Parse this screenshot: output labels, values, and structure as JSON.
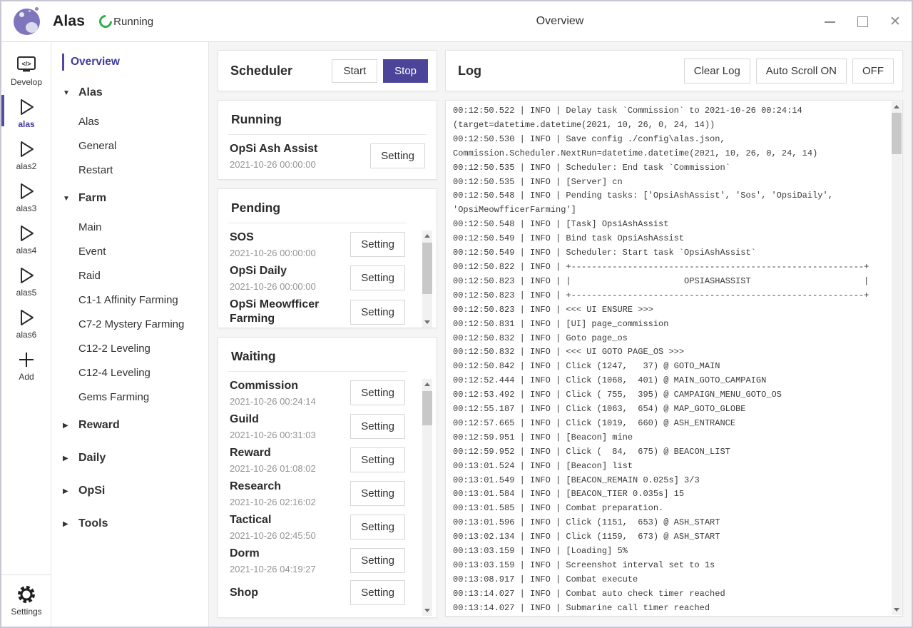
{
  "colors": {
    "accent": "#4b4499",
    "active_purple": "#3f3a9e",
    "green": "#2fae4d"
  },
  "window": {
    "app_title": "Alas",
    "status": "Running",
    "page_title": "Overview"
  },
  "sidebar": {
    "items": [
      {
        "label": "Develop",
        "icon": "code-monitor-icon",
        "active": false
      },
      {
        "label": "alas",
        "icon": "play-icon",
        "active": true
      },
      {
        "label": "alas2",
        "icon": "play-icon",
        "active": false
      },
      {
        "label": "alas3",
        "icon": "play-icon",
        "active": false
      },
      {
        "label": "alas4",
        "icon": "play-icon",
        "active": false
      },
      {
        "label": "alas5",
        "icon": "play-icon",
        "active": false
      },
      {
        "label": "alas6",
        "icon": "play-icon",
        "active": false
      },
      {
        "label": "Add",
        "icon": "plus-icon",
        "active": false
      }
    ],
    "settings": {
      "label": "Settings",
      "icon": "gear-icon"
    }
  },
  "nav": {
    "items": [
      {
        "type": "link",
        "label": "Overview",
        "active": true
      },
      {
        "type": "group",
        "label": "Alas",
        "arrow": "down"
      },
      {
        "type": "child",
        "label": "Alas"
      },
      {
        "type": "child",
        "label": "General"
      },
      {
        "type": "child",
        "label": "Restart"
      },
      {
        "type": "group",
        "label": "Farm",
        "arrow": "down"
      },
      {
        "type": "child",
        "label": "Main"
      },
      {
        "type": "child",
        "label": "Event"
      },
      {
        "type": "child",
        "label": "Raid"
      },
      {
        "type": "child",
        "label": "C1-1 Affinity Farming"
      },
      {
        "type": "child",
        "label": "C7-2 Mystery Farming"
      },
      {
        "type": "child",
        "label": "C12-2 Leveling"
      },
      {
        "type": "child",
        "label": "C12-4 Leveling"
      },
      {
        "type": "child",
        "label": "Gems Farming"
      },
      {
        "type": "group",
        "label": "Reward",
        "arrow": "right"
      },
      {
        "type": "group",
        "label": "Daily",
        "arrow": "right"
      },
      {
        "type": "group",
        "label": "OpSi",
        "arrow": "right"
      },
      {
        "type": "group",
        "label": "Tools",
        "arrow": "right"
      }
    ]
  },
  "scheduler": {
    "title": "Scheduler",
    "start_label": "Start",
    "stop_label": "Stop"
  },
  "running": {
    "title": "Running",
    "setting_label": "Setting",
    "tasks": [
      {
        "name": "OpSi Ash Assist",
        "time": "2021-10-26 00:00:00"
      }
    ]
  },
  "pending": {
    "title": "Pending",
    "setting_label": "Setting",
    "tasks": [
      {
        "name": "SOS",
        "time": "2021-10-26 00:00:00"
      },
      {
        "name": "OpSi Daily",
        "time": "2021-10-26 00:00:00"
      },
      {
        "name": "OpSi Meowfficer Farming",
        "time": ""
      }
    ]
  },
  "waiting": {
    "title": "Waiting",
    "setting_label": "Setting",
    "tasks": [
      {
        "name": "Commission",
        "time": "2021-10-26 00:24:14"
      },
      {
        "name": "Guild",
        "time": "2021-10-26 00:31:03"
      },
      {
        "name": "Reward",
        "time": "2021-10-26 01:08:02"
      },
      {
        "name": "Research",
        "time": "2021-10-26 02:16:02"
      },
      {
        "name": "Tactical",
        "time": "2021-10-26 02:45:50"
      },
      {
        "name": "Dorm",
        "time": "2021-10-26 04:19:27"
      },
      {
        "name": "Shop",
        "time": ""
      }
    ]
  },
  "log": {
    "title": "Log",
    "clear_label": "Clear Log",
    "autoscroll_on_label": "Auto Scroll ON",
    "autoscroll_off_label": "OFF",
    "lines": [
      "00:12:50.522 | INFO | Delay task `Commission` to 2021-10-26 00:24:14",
      "(target=datetime.datetime(2021, 10, 26, 0, 24, 14))",
      "00:12:50.530 | INFO | Save config ./config\\alas.json,",
      "Commission.Scheduler.NextRun=datetime.datetime(2021, 10, 26, 0, 24, 14)",
      "00:12:50.535 | INFO | Scheduler: End task `Commission`",
      "00:12:50.535 | INFO | [Server] cn",
      "00:12:50.548 | INFO | Pending tasks: ['OpsiAshAssist', 'Sos', 'OpsiDaily',",
      "'OpsiMeowfficerFarming']",
      "00:12:50.548 | INFO | [Task] OpsiAshAssist",
      "00:12:50.549 | INFO | Bind task OpsiAshAssist",
      "00:12:50.549 | INFO | Scheduler: Start task `OpsiAshAssist`",
      "00:12:50.822 | INFO | +---------------------------------------------------------+",
      "00:12:50.823 | INFO | |                      OPSIASHASSIST                      |",
      "00:12:50.823 | INFO | +---------------------------------------------------------+",
      "00:12:50.823 | INFO | <<< UI ENSURE >>>",
      "00:12:50.831 | INFO | [UI] page_commission",
      "00:12:50.832 | INFO | Goto page_os",
      "00:12:50.832 | INFO | <<< UI GOTO PAGE_OS >>>",
      "00:12:50.842 | INFO | Click (1247,   37) @ GOTO_MAIN",
      "00:12:52.444 | INFO | Click (1068,  401) @ MAIN_GOTO_CAMPAIGN",
      "00:12:53.492 | INFO | Click ( 755,  395) @ CAMPAIGN_MENU_GOTO_OS",
      "00:12:55.187 | INFO | Click (1063,  654) @ MAP_GOTO_GLOBE",
      "00:12:57.665 | INFO | Click (1019,  660) @ ASH_ENTRANCE",
      "00:12:59.951 | INFO | [Beacon] mine",
      "00:12:59.952 | INFO | Click (  84,  675) @ BEACON_LIST",
      "00:13:01.524 | INFO | [Beacon] list",
      "00:13:01.549 | INFO | [BEACON_REMAIN 0.025s] 3/3",
      "00:13:01.584 | INFO | [BEACON_TIER 0.035s] 15",
      "00:13:01.585 | INFO | Combat preparation.",
      "00:13:01.596 | INFO | Click (1151,  653) @ ASH_START",
      "00:13:02.134 | INFO | Click (1159,  673) @ ASH_START",
      "00:13:03.159 | INFO | [Loading] 5%",
      "00:13:03.159 | INFO | Screenshot interval set to 1s",
      "00:13:08.917 | INFO | Combat execute",
      "00:13:14.027 | INFO | Combat auto check timer reached",
      "00:13:14.027 | INFO | Submarine call timer reached"
    ]
  }
}
